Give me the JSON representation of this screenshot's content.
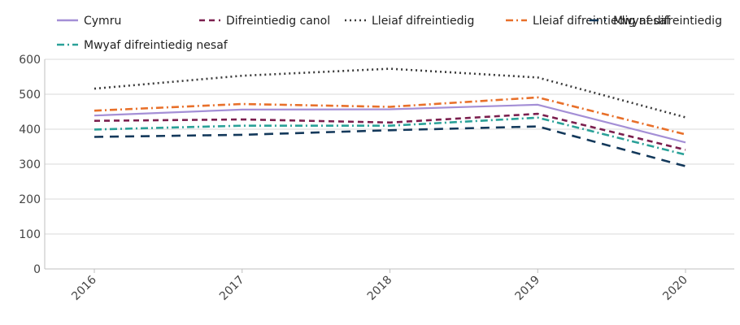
{
  "chart_data": {
    "type": "line",
    "title": "",
    "xlabel": "",
    "ylabel": "",
    "categories": [
      "2016",
      "2017",
      "2018",
      "2019",
      "2020"
    ],
    "ylim": [
      0,
      600
    ],
    "yticks": [
      0,
      100,
      200,
      300,
      400,
      500,
      600
    ],
    "grid": true,
    "legend_position": "top",
    "series": [
      {
        "name": "Cymru",
        "values": [
          439,
          456,
          457,
          470,
          362
        ],
        "color": "#a48fd6",
        "dash": "solid"
      },
      {
        "name": "Difreintiedig canol",
        "values": [
          424,
          428,
          419,
          444,
          341
        ],
        "color": "#7b1f4e",
        "dash": "dash"
      },
      {
        "name": "Lleiaf difreintiedig",
        "values": [
          516,
          553,
          573,
          548,
          434
        ],
        "color": "#3a3a3a",
        "dash": "dot"
      },
      {
        "name": "Lleiaf difreintiedig nesaf",
        "values": [
          453,
          472,
          464,
          491,
          385
        ],
        "color": "#e8702a",
        "dash": "dashdot"
      },
      {
        "name": "Mwyaf difreintiedig",
        "values": [
          378,
          384,
          397,
          408,
          294
        ],
        "color": "#14395b",
        "dash": "longdash"
      },
      {
        "name": "Mwyaf difreintiedig nesaf",
        "values": [
          399,
          410,
          410,
          433,
          327
        ],
        "color": "#2aa198",
        "dash": "dashdot"
      }
    ]
  }
}
